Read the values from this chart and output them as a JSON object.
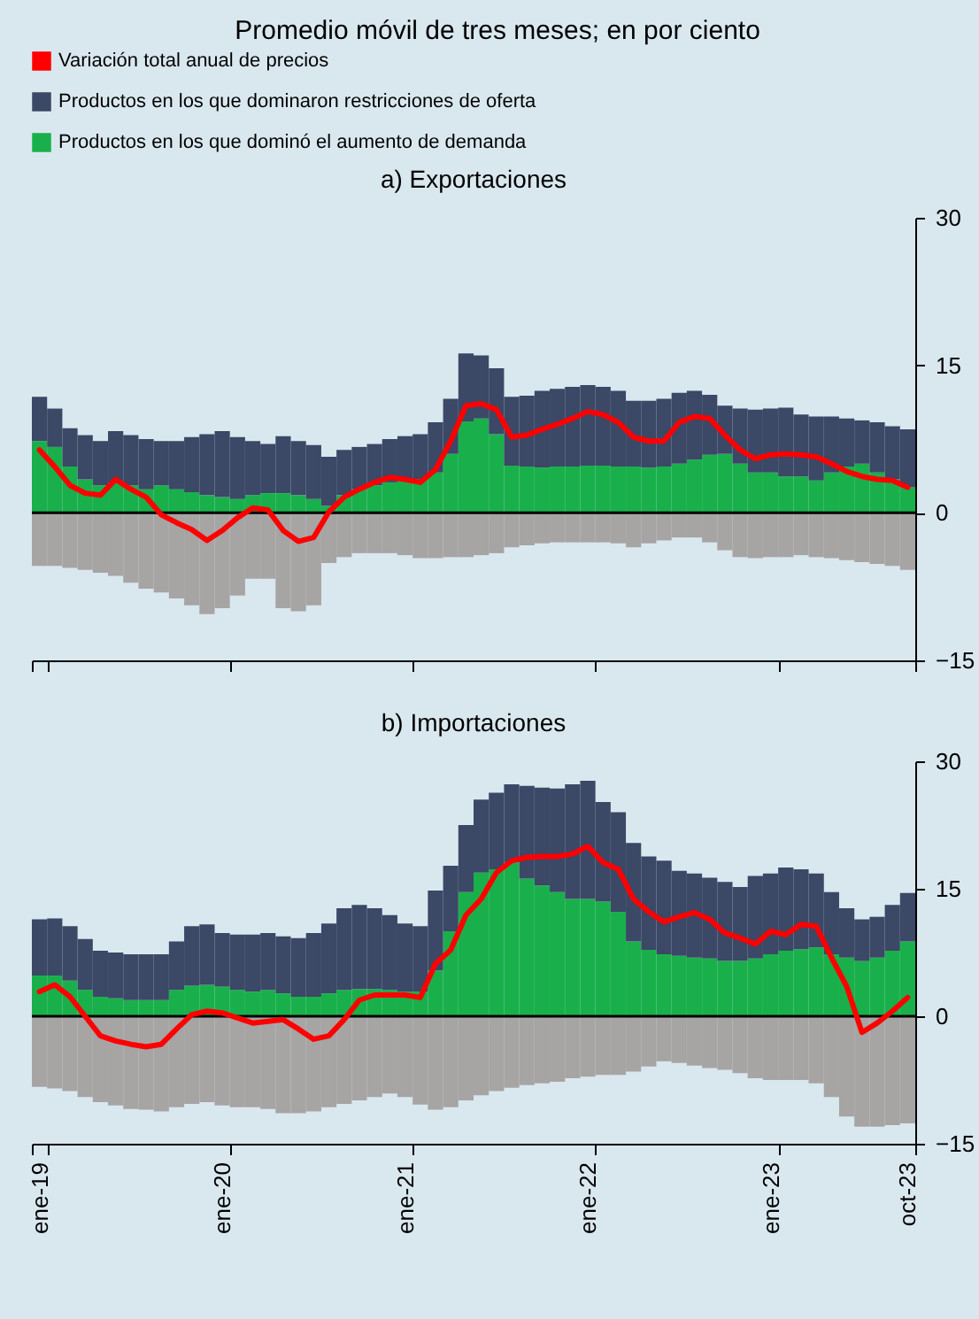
{
  "chart_data": [
    {
      "type": "bar",
      "title": "Promedio móvil de tres meses; en por ciento",
      "subtitle": "a) Exportaciones",
      "stacked": true,
      "legend": "top",
      "tick_labels": "y",
      "categories": [
        "ene-19",
        null,
        null,
        null,
        null,
        null,
        null,
        null,
        null,
        null,
        null,
        null,
        "ene-20",
        null,
        null,
        null,
        null,
        null,
        null,
        null,
        null,
        null,
        null,
        null,
        "ene-21",
        null,
        null,
        null,
        null,
        null,
        null,
        null,
        null,
        null,
        null,
        null,
        "ene-22",
        null,
        null,
        null,
        null,
        null,
        null,
        null,
        null,
        null,
        null,
        null,
        "ene-23",
        null,
        null,
        null,
        null,
        null,
        null,
        null,
        null,
        "oct-23"
      ],
      "ylim": [
        -15,
        30
      ],
      "yticks": [
        -15,
        0,
        15,
        30
      ],
      "ref_lines": [
        {
          "axis": "y",
          "value": 0,
          "color": "#000000"
        }
      ],
      "series": [
        {
          "name": "Productos en los que dominó el aumento de demanda",
          "color": "#19b04b",
          "values": [
            7.3,
            6.7,
            4.7,
            3.4,
            2.8,
            3.1,
            2.8,
            2.4,
            2.8,
            2.4,
            2.1,
            1.8,
            1.6,
            1.4,
            1.8,
            2.0,
            2.0,
            1.8,
            1.4,
            0.7,
            1.8,
            2.4,
            2.8,
            3.1,
            3.3,
            3.4,
            4.1,
            6.0,
            9.3,
            9.6,
            8.0,
            4.8,
            4.7,
            4.6,
            4.7,
            4.7,
            4.8,
            4.8,
            4.7,
            4.7,
            4.6,
            4.7,
            5.0,
            5.4,
            5.9,
            6.0,
            5.0,
            4.1,
            4.1,
            3.7,
            3.7,
            3.3,
            4.1,
            4.7,
            5.0,
            4.1,
            3.4,
            2.6
          ]
        },
        {
          "name": "Productos en los que dominaron restricciones de oferta",
          "color": "#3b4866",
          "values": [
            4.5,
            3.9,
            3.9,
            4.5,
            4.5,
            5.2,
            5.1,
            5.1,
            4.5,
            4.9,
            5.6,
            6.2,
            6.7,
            6.3,
            5.5,
            5.0,
            5.8,
            5.5,
            5.5,
            5.0,
            4.6,
            4.3,
            4.2,
            4.4,
            4.5,
            4.6,
            5.1,
            5.6,
            6.9,
            6.4,
            6.7,
            7.0,
            7.2,
            7.8,
            7.9,
            8.1,
            8.2,
            8.0,
            7.7,
            6.7,
            6.8,
            6.9,
            7.2,
            7.0,
            6.1,
            4.9,
            5.6,
            6.4,
            6.5,
            7.0,
            6.3,
            6.5,
            5.7,
            4.9,
            4.4,
            5.1,
            5.4,
            5.9
          ]
        },
        {
          "color": "#a7a4a4",
          "values": [
            -5.4,
            -5.4,
            -5.6,
            -5.8,
            -6.1,
            -6.4,
            -7.1,
            -7.7,
            -8.1,
            -8.7,
            -9.4,
            -10.3,
            -9.7,
            -8.4,
            -6.7,
            -6.7,
            -9.7,
            -10.0,
            -9.4,
            -5.1,
            -4.5,
            -4.1,
            -4.1,
            -4.1,
            -4.3,
            -4.6,
            -4.6,
            -4.5,
            -4.5,
            -4.3,
            -4.1,
            -3.5,
            -3.3,
            -3.1,
            -3.0,
            -3.0,
            -3.0,
            -3.0,
            -3.1,
            -3.5,
            -3.1,
            -2.8,
            -2.5,
            -2.5,
            -3.0,
            -3.8,
            -4.5,
            -4.6,
            -4.5,
            -4.5,
            -4.3,
            -4.5,
            -4.6,
            -4.8,
            -5.0,
            -5.2,
            -5.4,
            -5.8
          ]
        },
        {
          "type": "line",
          "name": "Variación total anual de precios",
          "color": "#ff0000",
          "values": [
            6.4,
            4.7,
            2.8,
            2.0,
            1.8,
            3.4,
            2.4,
            1.6,
            -0.2,
            -1.0,
            -1.7,
            -2.8,
            -1.8,
            -0.5,
            0.5,
            0.3,
            -1.8,
            -2.9,
            -2.5,
            0.1,
            1.6,
            2.4,
            3.1,
            3.6,
            3.4,
            3.1,
            4.4,
            7.3,
            10.9,
            11.1,
            10.5,
            7.7,
            7.9,
            8.5,
            9.0,
            9.6,
            10.3,
            10.0,
            9.2,
            7.7,
            7.3,
            7.3,
            9.2,
            9.8,
            9.6,
            7.9,
            6.4,
            5.5,
            5.9,
            6.0,
            5.9,
            5.7,
            5.0,
            4.2,
            3.7,
            3.4,
            3.3,
            2.6
          ]
        }
      ]
    },
    {
      "type": "bar",
      "title": "b) Importaciones",
      "stacked": true,
      "categories": [
        "ene-19",
        null,
        null,
        null,
        null,
        null,
        null,
        null,
        null,
        null,
        null,
        null,
        "ene-20",
        null,
        null,
        null,
        null,
        null,
        null,
        null,
        null,
        null,
        null,
        null,
        "ene-21",
        null,
        null,
        null,
        null,
        null,
        null,
        null,
        null,
        null,
        null,
        null,
        "ene-22",
        null,
        null,
        null,
        null,
        null,
        null,
        null,
        null,
        null,
        null,
        null,
        "ene-23",
        null,
        null,
        null,
        null,
        null,
        null,
        null,
        null,
        "oct-23"
      ],
      "ylim": [
        -15,
        30
      ],
      "yticks": [
        -15,
        0,
        15,
        30
      ],
      "ref_lines": [
        {
          "axis": "y",
          "value": 0,
          "color": "#000000"
        }
      ],
      "series": [
        {
          "name": "Productos en los que dominó el aumento de demanda",
          "color": "#19b04b",
          "values": [
            4.8,
            4.8,
            4.2,
            3.1,
            2.3,
            2.1,
            1.9,
            1.9,
            1.9,
            3.1,
            3.6,
            3.7,
            3.5,
            3.1,
            2.9,
            3.1,
            2.7,
            2.3,
            2.3,
            2.7,
            3.1,
            3.2,
            3.2,
            3.1,
            2.9,
            2.9,
            5.4,
            10.0,
            14.6,
            16.9,
            17.3,
            18.1,
            16.2,
            15.4,
            14.6,
            13.8,
            13.8,
            13.5,
            12.3,
            8.8,
            7.8,
            7.3,
            7.1,
            6.9,
            6.8,
            6.5,
            6.5,
            6.8,
            7.3,
            7.7,
            7.9,
            8.1,
            7.3,
            6.9,
            6.5,
            6.9,
            7.7,
            8.8
          ]
        },
        {
          "name": "Productos en los que dominaron restricciones de oferta",
          "color": "#3b4866",
          "values": [
            6.6,
            6.7,
            6.4,
            6.0,
            5.4,
            5.4,
            5.4,
            5.4,
            5.4,
            5.7,
            7.0,
            7.1,
            6.3,
            6.5,
            6.7,
            6.7,
            6.7,
            6.9,
            7.5,
            8.2,
            9.6,
            9.9,
            9.5,
            8.8,
            8.0,
            7.7,
            9.4,
            7.7,
            7.9,
            8.6,
            9.0,
            9.2,
            10.9,
            11.5,
            12.2,
            13.5,
            13.9,
            11.7,
            11.7,
            11.6,
            11.0,
            11.0,
            10.0,
            9.9,
            9.5,
            9.3,
            8.7,
            9.7,
            9.5,
            9.8,
            9.4,
            8.7,
            7.3,
            5.8,
            4.9,
            4.8,
            5.4,
            5.7
          ]
        },
        {
          "color": "#a7a4a4",
          "values": [
            -8.3,
            -8.5,
            -8.8,
            -9.5,
            -10.1,
            -10.5,
            -10.9,
            -11.0,
            -11.2,
            -10.7,
            -10.3,
            -10.1,
            -10.5,
            -10.7,
            -10.7,
            -10.9,
            -11.4,
            -11.4,
            -11.2,
            -10.7,
            -10.3,
            -9.9,
            -9.5,
            -9.1,
            -9.5,
            -10.4,
            -11.0,
            -10.7,
            -9.9,
            -9.3,
            -8.8,
            -8.4,
            -8.1,
            -7.9,
            -7.7,
            -7.3,
            -7.1,
            -6.9,
            -6.9,
            -6.5,
            -5.9,
            -5.3,
            -5.5,
            -5.8,
            -6.1,
            -6.3,
            -6.7,
            -7.3,
            -7.5,
            -7.5,
            -7.5,
            -7.9,
            -9.5,
            -11.8,
            -13.0,
            -13.0,
            -12.8,
            -12.6
          ]
        },
        {
          "type": "line",
          "name": "Variación total anual de precios",
          "color": "#ff0000",
          "values": [
            2.9,
            3.7,
            2.3,
            0.0,
            -2.3,
            -2.9,
            -3.3,
            -3.6,
            -3.3,
            -1.5,
            0.2,
            0.6,
            0.4,
            -0.2,
            -0.8,
            -0.6,
            -0.4,
            -1.5,
            -2.7,
            -2.3,
            -0.4,
            1.9,
            2.5,
            2.5,
            2.5,
            2.2,
            6.2,
            7.8,
            11.9,
            13.8,
            16.9,
            18.3,
            18.7,
            18.8,
            18.8,
            19.1,
            20.0,
            18.1,
            17.3,
            13.8,
            12.3,
            11.1,
            11.7,
            12.2,
            11.4,
            9.8,
            9.2,
            8.5,
            10.0,
            9.6,
            10.8,
            10.6,
            6.9,
            3.5,
            -1.9,
            -0.8,
            0.6,
            2.2
          ]
        }
      ]
    }
  ]
}
